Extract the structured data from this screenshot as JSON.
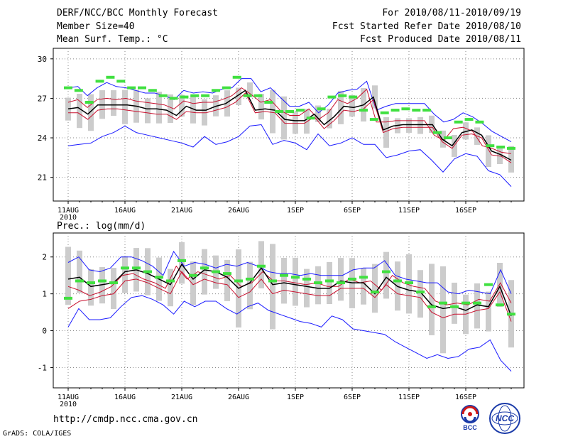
{
  "header": {
    "title": "DERF/NCC/BCC Monthly Forecast",
    "member_size": "Member Size=40",
    "variable": "Mean Surf. Temp.: °C",
    "period": "For 2010/08/11-2010/09/19",
    "started": "Fcst Started Refer Date 2010/08/10",
    "produced": "Fcst Produced Date 2010/08/11"
  },
  "footer": {
    "url": "http://cmdp.ncc.cma.gov.cn",
    "grads": "GrADS: COLA/IGES",
    "logo1_label": "BCC",
    "logo2_label": "NCC"
  },
  "colors": {
    "mean": "#000000",
    "spread": "#c8102e",
    "envelope": "#1a1aff",
    "box": "#cccccc",
    "observed": "#40e040"
  },
  "chart_data": [
    {
      "type": "line",
      "title": "Mean Surf. Temp.: °C",
      "x_tick_labels": [
        "11AUG",
        "16AUG",
        "21AUG",
        "26AUG",
        "1SEP",
        "6SEP",
        "11SEP",
        "16SEP"
      ],
      "x_year_label": "2010",
      "x_day_index_range": [
        0,
        39
      ],
      "yticks": [
        21,
        24,
        27,
        30
      ],
      "ylim": [
        19.2,
        30.8
      ],
      "series": [
        {
          "name": "ensemble max",
          "role": "envelope",
          "values": [
            27.8,
            27.9,
            27.2,
            27.8,
            28.2,
            27.9,
            27.8,
            27.6,
            27.4,
            27.4,
            27.2,
            26.9,
            27.6,
            27.4,
            27.5,
            27.4,
            27.7,
            27.8,
            28.5,
            28.5,
            27.5,
            27.8,
            27.1,
            26.4,
            26.4,
            26.7,
            25.9,
            26.5,
            27.4,
            27.6,
            27.7,
            28.3,
            26.1,
            26.4,
            26.6,
            26.6,
            26.6,
            26.6,
            25.8,
            25.2,
            25.4,
            25.9,
            25.6,
            25.1,
            24.5,
            24.1,
            23.7
          ]
        },
        {
          "name": "upper spread",
          "role": "spread",
          "values": [
            26.7,
            26.9,
            26.3,
            26.9,
            27.0,
            26.9,
            27.0,
            26.8,
            26.7,
            26.6,
            26.5,
            26.2,
            26.8,
            26.6,
            26.7,
            26.7,
            26.9,
            27.2,
            27.8,
            27.3,
            26.7,
            26.9,
            26.1,
            25.7,
            25.7,
            26.2,
            25.4,
            25.9,
            26.9,
            26.6,
            27.0,
            27.7,
            25.2,
            25.2,
            25.3,
            25.3,
            25.3,
            25.3,
            24.2,
            23.8,
            24.7,
            24.8,
            24.5,
            23.4,
            23.2,
            22.9,
            22.8
          ]
        },
        {
          "name": "ensemble mean",
          "role": "mean",
          "values": [
            26.2,
            26.3,
            25.8,
            26.5,
            26.5,
            26.5,
            26.5,
            26.4,
            26.2,
            26.2,
            26.1,
            25.7,
            26.4,
            26.1,
            26.1,
            26.4,
            26.6,
            27.1,
            27.6,
            26.1,
            26.2,
            26.1,
            25.4,
            25.3,
            25.3,
            25.8,
            25.0,
            25.6,
            26.4,
            26.3,
            26.5,
            27.1,
            24.6,
            24.9,
            25.0,
            25.0,
            25.0,
            25.0,
            23.9,
            23.4,
            24.4,
            24.6,
            24.2,
            23.0,
            22.7,
            22.3
          ]
        },
        {
          "name": "lower spread",
          "role": "spread",
          "values": [
            25.9,
            25.9,
            25.4,
            26.1,
            26.2,
            26.2,
            26.1,
            26.0,
            25.9,
            25.8,
            25.8,
            25.4,
            26.0,
            25.9,
            25.9,
            26.1,
            26.3,
            26.7,
            27.4,
            25.9,
            26.0,
            25.9,
            25.1,
            25.1,
            25.1,
            25.6,
            24.7,
            25.3,
            26.1,
            26.0,
            26.2,
            26.9,
            24.4,
            24.7,
            24.8,
            24.8,
            24.8,
            24.8,
            23.7,
            23.2,
            24.2,
            24.3,
            24.0,
            22.7,
            22.6,
            22.1
          ]
        },
        {
          "name": "ensemble min",
          "role": "envelope",
          "values": [
            23.4,
            23.5,
            23.6,
            24.1,
            24.4,
            24.9,
            24.4,
            24.2,
            24.0,
            23.8,
            23.6,
            23.3,
            24.1,
            23.5,
            23.7,
            24.1,
            24.9,
            25.0,
            23.5,
            23.8,
            23.6,
            23.1,
            24.3,
            23.4,
            23.6,
            24.0,
            23.5,
            23.5,
            22.5,
            22.7,
            23.0,
            23.1,
            22.3,
            21.4,
            22.4,
            22.8,
            22.6,
            21.5,
            21.2,
            20.3
          ]
        },
        {
          "name": "observed",
          "role": "observed",
          "values": [
            27.8,
            27.6,
            26.7,
            28.3,
            28.6,
            28.3,
            27.8,
            27.8,
            27.6,
            27.2,
            27.0,
            27.1,
            27.2,
            27.2,
            27.6,
            27.8,
            28.6,
            27.2,
            27.2,
            26.7,
            26.0,
            26.0,
            26.1,
            25.5,
            26.2,
            27.1,
            27.2,
            27.1,
            26.1,
            25.4,
            25.9,
            26.1,
            26.2,
            26.1,
            26.1,
            24.4,
            24.0,
            25.2,
            25.4,
            25.2,
            23.4,
            23.3,
            23.2
          ]
        }
      ],
      "boxes_count": 40
    },
    {
      "type": "line",
      "title": "Prec.: log(mm/d)",
      "x_tick_labels": [
        "11AUG",
        "16AUG",
        "21AUG",
        "26AUG",
        "1SEP",
        "6SEP",
        "11SEP",
        "16SEP"
      ],
      "x_year_label": "2010",
      "x_day_index_range": [
        0,
        39
      ],
      "yticks": [
        -1,
        0,
        1,
        2
      ],
      "ylim": [
        -1.55,
        2.65
      ],
      "series": [
        {
          "name": "ensemble max",
          "role": "envelope",
          "values": [
            1.85,
            2.0,
            1.65,
            1.6,
            1.7,
            2.0,
            2.0,
            1.9,
            1.75,
            1.5,
            2.15,
            1.75,
            1.85,
            1.8,
            1.7,
            1.8,
            1.75,
            1.85,
            1.75,
            1.6,
            1.55,
            1.55,
            1.5,
            1.55,
            1.5,
            1.5,
            1.5,
            1.65,
            1.7,
            1.7,
            1.9,
            1.5,
            1.4,
            1.35,
            1.3,
            1.3,
            1.05,
            1.0,
            1.1,
            1.05,
            1.0,
            1.65,
            1.0
          ]
        },
        {
          "name": "upper spread",
          "role": "spread",
          "values": [
            1.2,
            1.1,
            0.95,
            1.05,
            1.2,
            1.5,
            1.55,
            1.4,
            1.3,
            1.15,
            1.75,
            1.4,
            1.6,
            1.5,
            1.4,
            1.5,
            1.2,
            1.3,
            1.6,
            1.35,
            1.35,
            1.3,
            1.25,
            1.3,
            1.2,
            1.2,
            1.4,
            1.3,
            1.35,
            1.1,
            1.5,
            1.3,
            1.2,
            1.15,
            0.8,
            0.7,
            0.75,
            0.7,
            0.85,
            0.8,
            1.3,
            0.75
          ]
        },
        {
          "name": "ensemble mean",
          "role": "mean",
          "values": [
            1.4,
            1.45,
            1.2,
            1.25,
            1.3,
            1.6,
            1.65,
            1.55,
            1.4,
            1.25,
            1.8,
            1.4,
            1.65,
            1.6,
            1.45,
            1.15,
            1.3,
            1.7,
            1.25,
            1.3,
            1.25,
            1.2,
            1.15,
            1.15,
            1.35,
            1.3,
            1.3,
            1.0,
            1.45,
            1.2,
            1.1,
            1.05,
            0.7,
            0.6,
            0.65,
            0.55,
            0.7,
            0.65,
            1.2,
            0.4
          ]
        },
        {
          "name": "lower spread",
          "role": "spread",
          "values": [
            0.6,
            0.8,
            0.85,
            0.95,
            1.0,
            1.35,
            1.4,
            1.3,
            1.15,
            1.0,
            1.6,
            1.25,
            1.4,
            1.3,
            1.25,
            0.9,
            1.05,
            1.4,
            1.0,
            1.1,
            1.05,
            1.0,
            0.95,
            0.95,
            1.15,
            1.15,
            1.15,
            0.9,
            1.25,
            1.0,
            0.95,
            0.9,
            0.5,
            0.35,
            0.45,
            0.45,
            0.55,
            0.6,
            1.05,
            0.25
          ]
        },
        {
          "name": "ensemble min",
          "role": "envelope",
          "values": [
            0.1,
            0.6,
            0.3,
            0.3,
            0.35,
            0.65,
            0.9,
            0.95,
            0.85,
            0.7,
            0.45,
            0.8,
            0.65,
            0.8,
            0.8,
            0.6,
            0.45,
            0.65,
            0.75,
            0.55,
            0.45,
            0.35,
            0.25,
            0.2,
            0.1,
            0.4,
            0.3,
            0.05,
            0.0,
            -0.05,
            -0.1,
            -0.3,
            -0.45,
            -0.6,
            -0.75,
            -0.65,
            -0.75,
            -0.7,
            -0.5,
            -0.45,
            -0.25,
            -0.8,
            -1.1
          ]
        },
        {
          "name": "observed",
          "role": "observed",
          "values": [
            0.88,
            1.35,
            1.3,
            1.35,
            1.3,
            1.7,
            1.7,
            1.6,
            1.45,
            1.35,
            1.9,
            1.5,
            1.7,
            1.6,
            1.55,
            1.35,
            1.4,
            1.75,
            1.35,
            1.5,
            1.45,
            1.4,
            1.3,
            1.35,
            1.3,
            1.4,
            1.45,
            1.05,
            1.6,
            1.35,
            1.3,
            1.05,
            0.65,
            0.75,
            0.65,
            0.75,
            0.75,
            1.25,
            0.7,
            0.45
          ]
        }
      ],
      "boxes_count": 40
    }
  ]
}
